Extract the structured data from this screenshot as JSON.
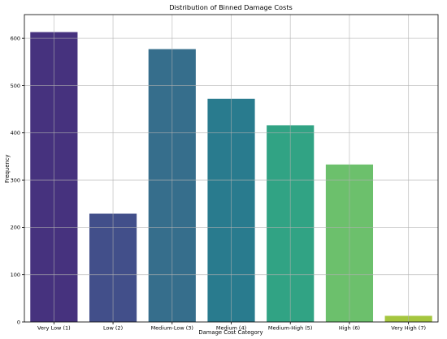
{
  "chart_data": {
    "type": "bar",
    "title": "Distribution of Binned Damage Costs",
    "xlabel": "Damage Cost Category",
    "ylabel": "Frequency",
    "categories": [
      "Very Low (1)",
      "Low (2)",
      "Medium-Low (3)",
      "Medium (4)",
      "Medium-High (5)",
      "High (6)",
      "Very High (7)"
    ],
    "values": [
      613,
      229,
      577,
      472,
      416,
      333,
      13
    ],
    "colors": [
      "#46327e",
      "#424f8a",
      "#366e8c",
      "#297b8e",
      "#31a384",
      "#6cc06c",
      "#a5c63f"
    ],
    "ylim": [
      0,
      650
    ],
    "yticks": [
      0,
      100,
      200,
      300,
      400,
      500,
      600
    ],
    "grid": true,
    "legend": "none"
  }
}
